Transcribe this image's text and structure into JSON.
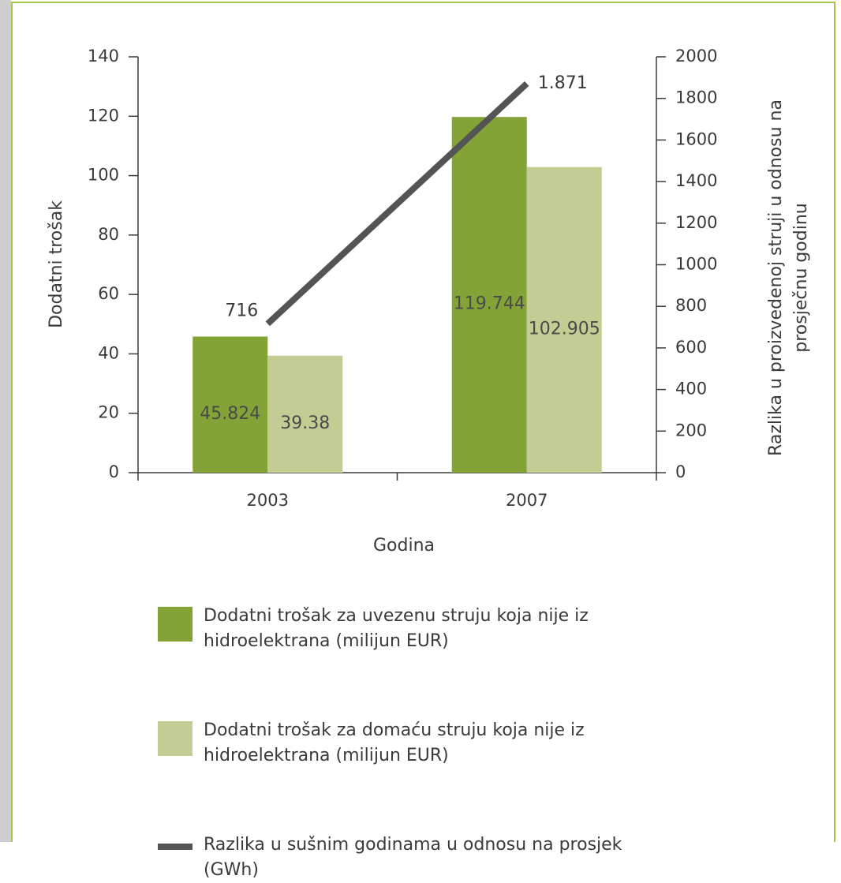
{
  "chart_data": {
    "type": "bar",
    "x_label": "Godina",
    "y_label": "Dodatni trošak",
    "y2_label": "Razlika u proizvedenoj struji u odnosu na prosječnu godinu",
    "categories": [
      "2003",
      "2007"
    ],
    "series": [
      {
        "name": "Dodatni trošak za uvezenu struju koja nije iz hidroelektrana (milijun EUR)",
        "color": "#84a336",
        "values": [
          45.824,
          119.744
        ]
      },
      {
        "name": "Dodatni trošak za domaću struju koja nije iz hidroelektrana (milijun EUR)",
        "color": "#c3cc93",
        "values": [
          39.38,
          102.905
        ]
      },
      {
        "name": "Razlika u sušnim godinama u odnosu na prosjek (GWh)",
        "color": "#545454",
        "type": "line",
        "axis": "y2",
        "values": [
          716,
          1871
        ],
        "value_labels": [
          "716",
          "1.871"
        ]
      }
    ],
    "ylim": [
      0,
      140
    ],
    "yticks": [
      0,
      20,
      40,
      60,
      80,
      100,
      120,
      140
    ],
    "y2lim": [
      0,
      2000
    ],
    "y2ticks": [
      0,
      200,
      400,
      600,
      800,
      1000,
      1200,
      1400,
      1600,
      1800,
      2000
    ]
  }
}
